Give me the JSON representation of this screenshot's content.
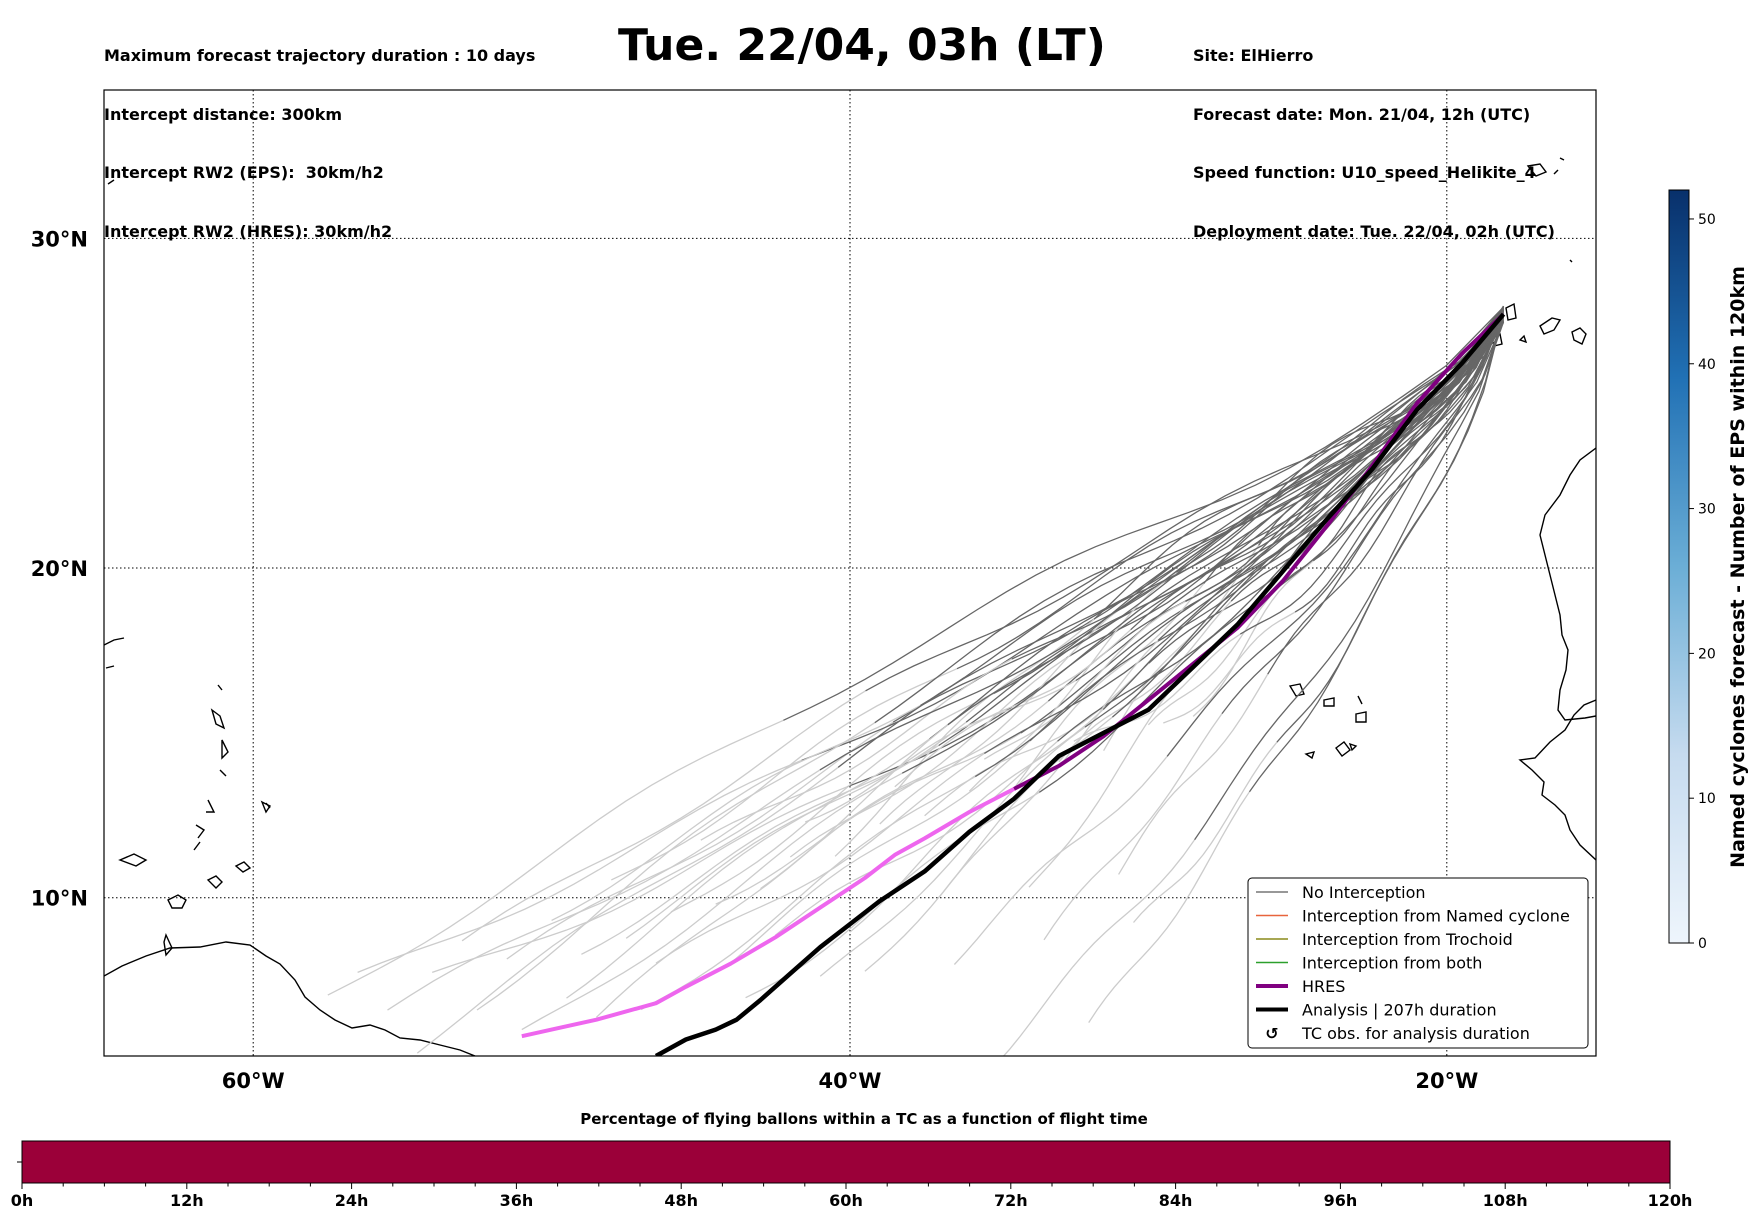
{
  "header": {
    "left_lines": [
      "Maximum forecast trajectory duration : 10 days",
      "Intercept distance: 300km",
      "Intercept RW2 (EPS):  30km/h2",
      "Intercept RW2 (HRES): 30km/h2"
    ],
    "title": "Tue. 22/04, 03h (LT)",
    "right_lines": [
      "Site: ElHierro",
      "Forecast date: Mon. 21/04, 12h (UTC)",
      "Speed function: U10_speed_Helikite_4",
      "Deployment date: Tue. 22/04, 02h (UTC)"
    ]
  },
  "map": {
    "lon_ticks": [
      "60°W",
      "40°W",
      "20°W"
    ],
    "lat_ticks": [
      "30°N",
      "20°N",
      "10°N"
    ],
    "lon_range": [
      -65,
      -15
    ],
    "lat_range": [
      5.2,
      34.5
    ],
    "gridlines": "dotted",
    "colors": {
      "ensemble_early": "#cccccc",
      "ensemble_late": "#666666",
      "hres_late": "#800080",
      "hres_early": "#ee66ee",
      "analysis": "#000000"
    }
  },
  "legend": {
    "placement": "lower-right",
    "items": [
      {
        "label": "No Interception",
        "color": "#777777",
        "style": "thin"
      },
      {
        "label": "Interception from Named cyclone",
        "color": "#e8643c",
        "style": "thin"
      },
      {
        "label": "Interception from Trochoid",
        "color": "#8a8a1a",
        "style": "thin"
      },
      {
        "label": "Interception from both",
        "color": "#2ca02c",
        "style": "thin"
      },
      {
        "label": "HRES",
        "color": "#800080",
        "style": "thick"
      },
      {
        "label": "Analysis | 207h duration",
        "color": "#000000",
        "style": "thick"
      },
      {
        "label": "TC obs. for analysis duration",
        "color": "#000000",
        "style": "symbol",
        "symbol": "↺"
      }
    ]
  },
  "colorbar": {
    "label": "Named cyclones forecast - Number of EPS within 120km",
    "ticks": [
      "0",
      "10",
      "20",
      "30",
      "40",
      "50"
    ],
    "range": [
      0,
      52
    ],
    "colormap": "Blues",
    "color_low": "#eef5fc",
    "color_high": "#08306b"
  },
  "bottom_bar": {
    "caption": "Percentage of flying ballons within a TC as a function of flight time",
    "ticks": [
      "0h",
      "12h",
      "24h",
      "36h",
      "48h",
      "60h",
      "72h",
      "84h",
      "96h",
      "108h",
      "120h"
    ],
    "fill_color": "#9b0039",
    "fill_fraction": 1.0
  },
  "chart_data": {
    "type": "line",
    "title": "Tue. 22/04, 03h (LT)",
    "xlabel": "",
    "ylabel": "",
    "xlim": [
      -65,
      -15
    ],
    "ylim": [
      5.2,
      34.5
    ],
    "origin": {
      "lon": -18.1,
      "lat": 27.7
    },
    "series": [
      {
        "name": "HRES",
        "points": [
          [
            -18.1,
            27.7
          ],
          [
            -19.5,
            26.5
          ],
          [
            -21,
            25.0
          ],
          [
            -22.5,
            23.1
          ],
          [
            -24,
            21.3
          ],
          [
            -25.5,
            19.6
          ],
          [
            -27,
            18.2
          ],
          [
            -28.5,
            17.1
          ],
          [
            -30,
            16.0
          ],
          [
            -31.5,
            14.9
          ],
          [
            -33,
            14.0
          ],
          [
            -34.5,
            13.3
          ],
          [
            -36,
            12.6
          ],
          [
            -37.5,
            11.8
          ],
          [
            -38.5,
            11.3
          ],
          [
            -39.5,
            10.6
          ],
          [
            -41,
            9.7
          ],
          [
            -42.5,
            8.8
          ],
          [
            -44,
            8.0
          ],
          [
            -45.5,
            7.3
          ],
          [
            -46.5,
            6.8
          ],
          [
            -48.5,
            6.3
          ],
          [
            -50,
            6.0
          ],
          [
            -51,
            5.8
          ]
        ]
      },
      {
        "name": "Analysis | 207h duration",
        "points": [
          [
            -18.1,
            27.7
          ],
          [
            -19.5,
            26.2
          ],
          [
            -21,
            24.8
          ],
          [
            -22.5,
            23.0
          ],
          [
            -24,
            21.5
          ],
          [
            -25.5,
            19.9
          ],
          [
            -27,
            18.3
          ],
          [
            -28.5,
            17.0
          ],
          [
            -30,
            15.7
          ],
          [
            -31.5,
            15.0
          ],
          [
            -33,
            14.3
          ],
          [
            -34.5,
            13.0
          ],
          [
            -36,
            12.0
          ],
          [
            -37.5,
            10.8
          ],
          [
            -39,
            9.9
          ],
          [
            -40,
            9.2
          ],
          [
            -41,
            8.5
          ],
          [
            -42,
            7.7
          ],
          [
            -43,
            6.9
          ],
          [
            -43.8,
            6.3
          ],
          [
            -44.5,
            6.0
          ],
          [
            -45.5,
            5.7
          ],
          [
            -46.5,
            5.2
          ]
        ]
      }
    ],
    "ensemble_members": 50,
    "ensemble_endpoints_lon": [
      -57.5,
      -54,
      -51.5,
      -49,
      -47.5,
      -46,
      -44.5,
      -43,
      -42,
      -40.5,
      -39,
      -37.5,
      -36,
      -34.5,
      -33,
      -31.5,
      -30,
      -28.5,
      -56.5,
      -53,
      -50,
      -48,
      -45,
      -41.5,
      -38.5,
      -35.5,
      -32.5,
      -29.5,
      -55.5,
      -52.5,
      -49.5,
      -46.5,
      -44,
      -42.5,
      -40,
      -37,
      -34,
      -31,
      -54.5,
      -51,
      -48.5,
      -47,
      -43.5,
      -41,
      -39.5,
      -36.5,
      -33.5,
      -30.5,
      -35,
      -32
    ],
    "ensemble_endpoints_lat": [
      7.0,
      7.5,
      8.0,
      8.5,
      9.0,
      9.5,
      10.0,
      10.5,
      11.0,
      11.5,
      12.0,
      12.5,
      13.0,
      13.5,
      14.0,
      14.5,
      15.0,
      15.5,
      7.5,
      8.5,
      9.5,
      10.5,
      11.5,
      12.5,
      13.5,
      14.0,
      14.5,
      15.2,
      6.5,
      6.8,
      7.2,
      7.8,
      8.2,
      8.8,
      9.2,
      9.8,
      10.2,
      10.8,
      5.5,
      5.8,
      6.2,
      6.6,
      7.0,
      7.4,
      7.8,
      8.2,
      8.6,
      9.0,
      5.3,
      6.0
    ],
    "darkening_after_hours": 120,
    "bottom_percentage": {
      "x_hours": [
        0,
        120
      ],
      "percent_in_tc": 100
    }
  }
}
